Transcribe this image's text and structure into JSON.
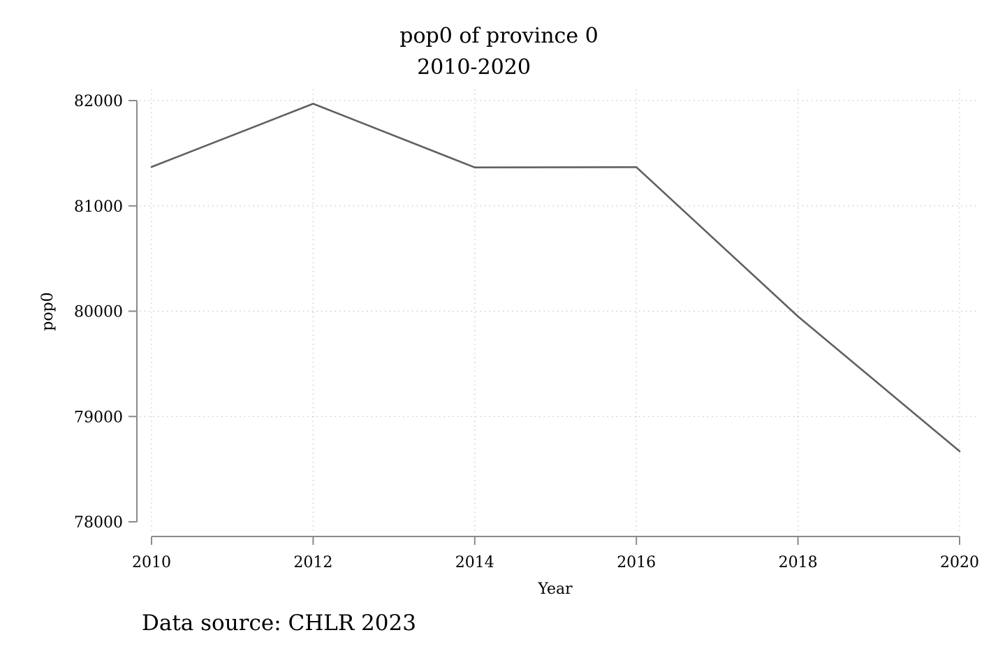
{
  "chart_data": {
    "type": "line",
    "title": "pop0 of province 0",
    "subtitle": "2010-2020",
    "xlabel": "Year",
    "ylabel": "pop0",
    "x": [
      2010,
      2012,
      2014,
      2016,
      2018,
      2020
    ],
    "series": [
      {
        "values": [
          81370,
          81970,
          81365,
          81368,
          79950,
          78670
        ]
      }
    ],
    "xticks": [
      "2010",
      "2012",
      "2014",
      "2016",
      "2018",
      "2020"
    ],
    "yticks": [
      "78000",
      "79000",
      "80000",
      "81000",
      "82000"
    ],
    "xlim": [
      2010,
      2020
    ],
    "ylim": [
      78000,
      82000
    ],
    "grid": true,
    "line_color": "#606060",
    "note": "Data source: CHLR 2023"
  }
}
